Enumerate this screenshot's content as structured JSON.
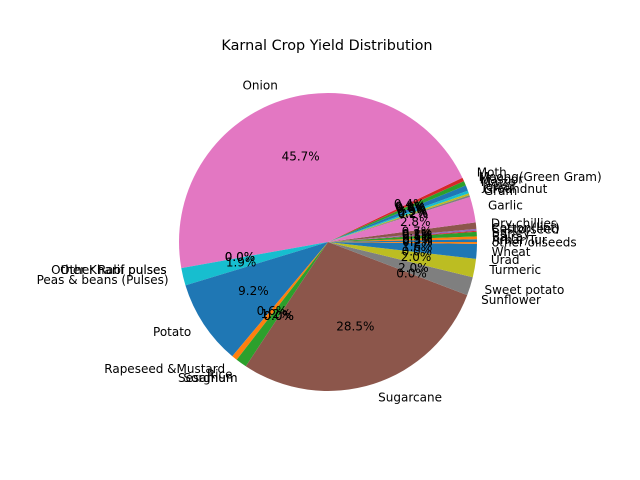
{
  "chart_data": {
    "type": "pie",
    "title": "Karnal Crop Yield Distribution",
    "slices": [
      {
        "label": "Arhar/Tur",
        "value": 0.3,
        "pct_label": "0.3%",
        "color": "#1f77b4"
      },
      {
        "label": "Bajra",
        "value": 0.3,
        "pct_label": "0.3%",
        "color": "#ff7f0e"
      },
      {
        "label": "Barley",
        "value": 0.5,
        "pct_label": "0.5%",
        "color": "#2ca02c"
      },
      {
        "label": "Castorseed",
        "value": 0.1,
        "pct_label": "0.1%",
        "color": "#d62728"
      },
      {
        "label": "Cotton(lint)",
        "value": 0.2,
        "pct_label": "0.2%",
        "color": "#9467bd"
      },
      {
        "label": "Dry chillies",
        "value": 0.7,
        "pct_label": "0.7%",
        "color": "#8c564b"
      },
      {
        "label": "Garlic",
        "value": 2.8,
        "pct_label": "2.8%",
        "color": "#e377c2"
      },
      {
        "label": "Gram",
        "value": 0.2,
        "pct_label": "0.2%",
        "color": "#7f7f7f"
      },
      {
        "label": "Groundnut",
        "value": 0.2,
        "pct_label": "0.2%",
        "color": "#bcbd22"
      },
      {
        "label": "Jowar",
        "value": 0.3,
        "pct_label": "0.3%",
        "color": "#17becf"
      },
      {
        "label": "Maize",
        "value": 0.6,
        "pct_label": "0.6%",
        "color": "#1f77b4"
      },
      {
        "label": "Masoor",
        "value": 0.0,
        "pct_label": "0.0%",
        "color": "#ff7f0e"
      },
      {
        "label": "Moong(Green Gram)",
        "value": 0.5,
        "pct_label": "0.5%",
        "color": "#2ca02c"
      },
      {
        "label": "Moth",
        "value": 0.4,
        "pct_label": "0.4%",
        "color": "#d62728"
      },
      {
        "label": "Onion",
        "value": 45.7,
        "pct_label": "45.7%",
        "color": "#e377c2"
      },
      {
        "label": "Other Kharif pulses",
        "value": 0.0,
        "pct_label": "0.0%",
        "color": "#7f7f7f"
      },
      {
        "label": "Other Rabi pulses",
        "value": 0.0,
        "pct_label": "0.0%",
        "color": "#bcbd22"
      },
      {
        "label": "Peas & beans (Pulses)",
        "value": 1.9,
        "pct_label": "1.9%",
        "color": "#17becf"
      },
      {
        "label": "Potato",
        "value": 9.2,
        "pct_label": "9.2%",
        "color": "#1f77b4"
      },
      {
        "label": "Rapeseed &Mustard",
        "value": 0.6,
        "pct_label": "0.6%",
        "color": "#ff7f0e"
      },
      {
        "label": "Rice",
        "value": 1.2,
        "pct_label": "1.2%",
        "color": "#2ca02c"
      },
      {
        "label": "Sesamum",
        "value": 0.0,
        "pct_label": "0.0%",
        "color": "#d62728"
      },
      {
        "label": "Sorghum",
        "value": 0.0,
        "pct_label": "0.0%",
        "color": "#9467bd"
      },
      {
        "label": "Sugarcane",
        "value": 28.5,
        "pct_label": "28.5%",
        "color": "#8c564b"
      },
      {
        "label": "Sunflower",
        "value": 0.0,
        "pct_label": "0.0%",
        "color": "#e377c2"
      },
      {
        "label": "Sweet potato",
        "value": 2.0,
        "pct_label": "2.0%",
        "color": "#7f7f7f"
      },
      {
        "label": "Turmeric",
        "value": 2.0,
        "pct_label": "2.0%",
        "color": "#bcbd22"
      },
      {
        "label": "Urad",
        "value": 0.0,
        "pct_label": "0.0%",
        "color": "#17becf"
      },
      {
        "label": "Wheat",
        "value": 1.6,
        "pct_label": "1.6%",
        "color": "#1f77b4"
      },
      {
        "label": "other oilseeds",
        "value": 0.2,
        "pct_label": "0.2%",
        "color": "#ff7f0e"
      }
    ]
  }
}
